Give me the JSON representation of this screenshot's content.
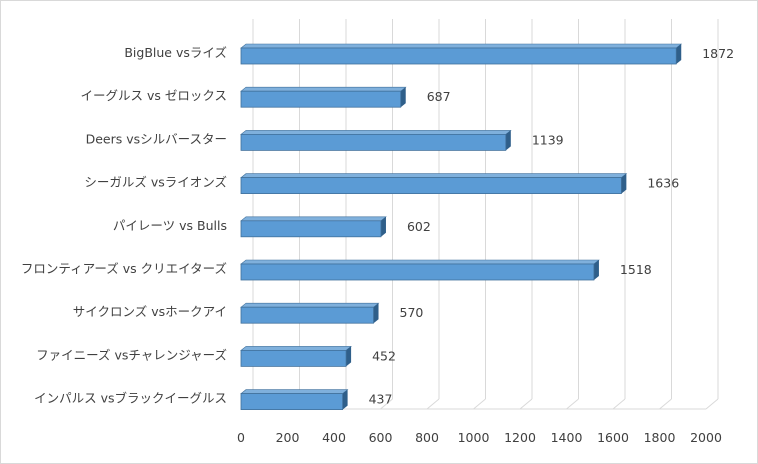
{
  "chart_data": {
    "type": "bar",
    "orientation": "horizontal",
    "style": "3d",
    "title": "",
    "xlabel": "",
    "ylabel": "",
    "xlim": [
      0,
      2000
    ],
    "x_ticks": [
      "0",
      "200",
      "400",
      "600",
      "800",
      "1000",
      "1200",
      "1400",
      "1600",
      "1800",
      "2000"
    ],
    "grid": true,
    "categories": [
      "BigBlue vsライズ",
      "イーグルス vs ゼロックス",
      "Deers vsシルバースター",
      "シーガルズ vsライオンズ",
      "パイレーツ vs Bulls",
      "フロンティアーズ vs クリエイターズ",
      "サイクロンズ vsホークアイ",
      "ファイニーズ vsチャレンジャーズ",
      "インパルス vsブラックイーグルス"
    ],
    "values": [
      1872,
      687,
      1139,
      1636,
      602,
      1518,
      570,
      452,
      437
    ],
    "value_labels": [
      "1872",
      "687",
      "1139",
      "1636",
      "602",
      "1518",
      "570",
      "452",
      "437"
    ],
    "colors": {
      "bar_front": "#5b9bd5",
      "bar_top": "#7fb0dc",
      "bar_side": "#2f5f8a",
      "bar_edge": "#41719c",
      "grid": "#d9d9d9",
      "text": "#404040"
    }
  }
}
